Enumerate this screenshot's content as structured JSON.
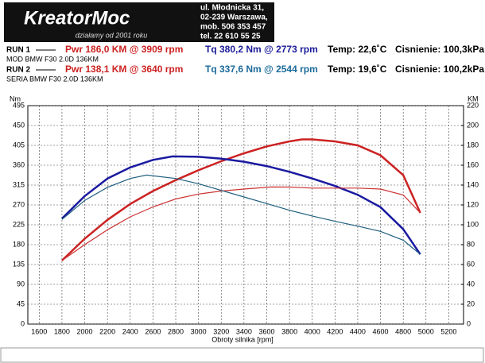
{
  "header": {
    "logo": "KreatorMoc",
    "slogan": "działamy od 2001 roku",
    "address": [
      "ul. Młodnicka 31,",
      "02-239  Warszawa,",
      "mob.  506 353 457",
      "tel.  22 610 55 25"
    ]
  },
  "runs": [
    {
      "name": "RUN 1",
      "pwr": "Pwr  186,0 KM @ 3909 rpm",
      "tq": "Tq 380,2 Nm @ 2773 rpm",
      "temp": "Temp: 22,6˚C",
      "press": "Cisnienie: 100,3kPa",
      "desc": "MOD BMW F30 2.0D 136KM"
    },
    {
      "name": "RUN 2",
      "pwr": "Pwr  138,1 KM @ 3640 rpm",
      "tq": "Tq 337,6 Nm @ 2544 rpm",
      "temp": "Temp: 19,6˚C",
      "press": "Cisnienie: 100,2kPa",
      "desc": "SERIA BMW F30 2.0D 136KM"
    }
  ],
  "chart_data": {
    "type": "line",
    "ylabel": "Nm",
    "y2label": "KM",
    "xlabel": "Obroty silnika [rpm]",
    "grid": true,
    "xlim": [
      1500,
      5330
    ],
    "xticks": [
      1600,
      1800,
      2000,
      2200,
      2400,
      2600,
      2800,
      3000,
      3200,
      3400,
      3600,
      3800,
      4000,
      4200,
      4400,
      4600,
      4800,
      5000,
      5200
    ],
    "ylim": [
      0,
      495
    ],
    "yticks": [
      0,
      45,
      90,
      135,
      180,
      225,
      270,
      315,
      360,
      405,
      450,
      495
    ],
    "y2lim": [
      0,
      220
    ],
    "y2ticks": [
      0,
      20,
      40,
      60,
      80,
      100,
      120,
      140,
      160,
      180,
      200,
      220
    ],
    "series": [
      {
        "color": "#cc2222",
        "width": 2.5,
        "axis": "y2",
        "x": [
          1800,
          2000,
          2200,
          2400,
          2600,
          2800,
          3000,
          3200,
          3400,
          3600,
          3800,
          3909,
          4000,
          4200,
          4400,
          4600,
          4800,
          4950
        ],
        "values": [
          64,
          86,
          105,
          121,
          134,
          145,
          155,
          164,
          172,
          179,
          184,
          186,
          186,
          184,
          180,
          170,
          150,
          112
        ]
      },
      {
        "color": "#1a1aa0",
        "width": 2.5,
        "x": [
          1800,
          2000,
          2200,
          2400,
          2600,
          2773,
          3000,
          3200,
          3400,
          3600,
          3800,
          4000,
          4200,
          4400,
          4600,
          4800,
          4950
        ],
        "values": [
          239,
          290,
          330,
          355,
          372,
          380,
          379,
          375,
          368,
          358,
          345,
          330,
          313,
          293,
          265,
          215,
          158
        ]
      },
      {
        "color": "#cc3333",
        "width": 1.2,
        "axis": "y2",
        "x": [
          1800,
          2000,
          2200,
          2400,
          2600,
          2800,
          3000,
          3200,
          3400,
          3640,
          3800,
          4000,
          4200,
          4400,
          4600,
          4800,
          4950
        ],
        "values": [
          64,
          80,
          95,
          108,
          118,
          126,
          131,
          134,
          136,
          138.1,
          138,
          137,
          137,
          137,
          136,
          130,
          112
        ]
      },
      {
        "color": "#1f5f7f",
        "width": 1.2,
        "x": [
          1800,
          2000,
          2200,
          2400,
          2544,
          2800,
          3000,
          3200,
          3400,
          3600,
          3800,
          4000,
          4200,
          4400,
          4600,
          4800,
          4950
        ],
        "values": [
          237,
          280,
          310,
          330,
          337.6,
          330,
          318,
          303,
          288,
          273,
          258,
          245,
          233,
          222,
          210,
          190,
          158
        ]
      }
    ]
  }
}
